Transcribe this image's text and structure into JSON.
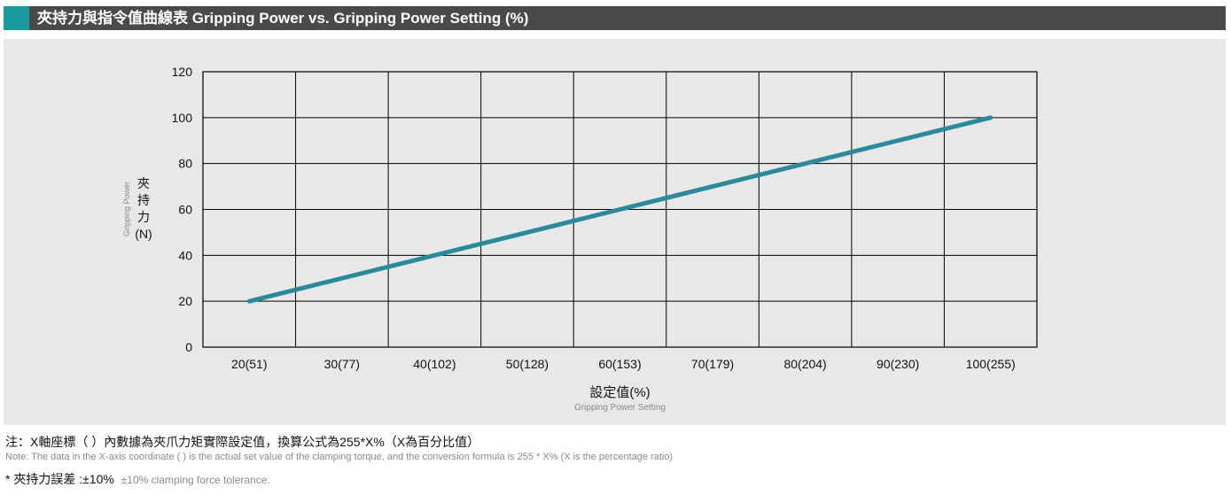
{
  "header": {
    "title": "夾持力與指令值曲線表 Gripping Power vs. Gripping Power Setting (%)",
    "accent_color": "#1a9ba0",
    "bar_color": "#4a4a4a"
  },
  "chart_data": {
    "type": "line",
    "title": "",
    "categories": [
      "20(51)",
      "30(77)",
      "40(102)",
      "50(128)",
      "60(153)",
      "70(179)",
      "80(204)",
      "90(230)",
      "100(255)"
    ],
    "series": [
      {
        "values": [
          20,
          30,
          40,
          50,
          60,
          70,
          80,
          90,
          100
        ],
        "color": "#2a8a99"
      }
    ],
    "ylim": [
      0,
      120
    ],
    "yticks": [
      0,
      20,
      40,
      60,
      80,
      100,
      120
    ],
    "ylabel_zh": [
      "夾",
      "持",
      "力",
      "(N)"
    ],
    "ylabel_en": "Gripping Power",
    "xlabel_zh": "設定值(%)",
    "xlabel_en": "Gripping Power Setting",
    "grid": true,
    "legend": "none"
  },
  "notes": {
    "zh": "注：X軸座標（ ）內數據為夾爪力矩實際設定值，換算公式為255*X%（X為百分比值）",
    "en": "Note: The data in the X-axis coordinate ( ) is the actual set value of the clamping torque, and the conversion formula is 255 * X% (X is the percentage ratio)",
    "tolerance_zh": "* 夾持力誤差 :±10%",
    "tolerance_en": "±10% clamping force tolerance."
  }
}
